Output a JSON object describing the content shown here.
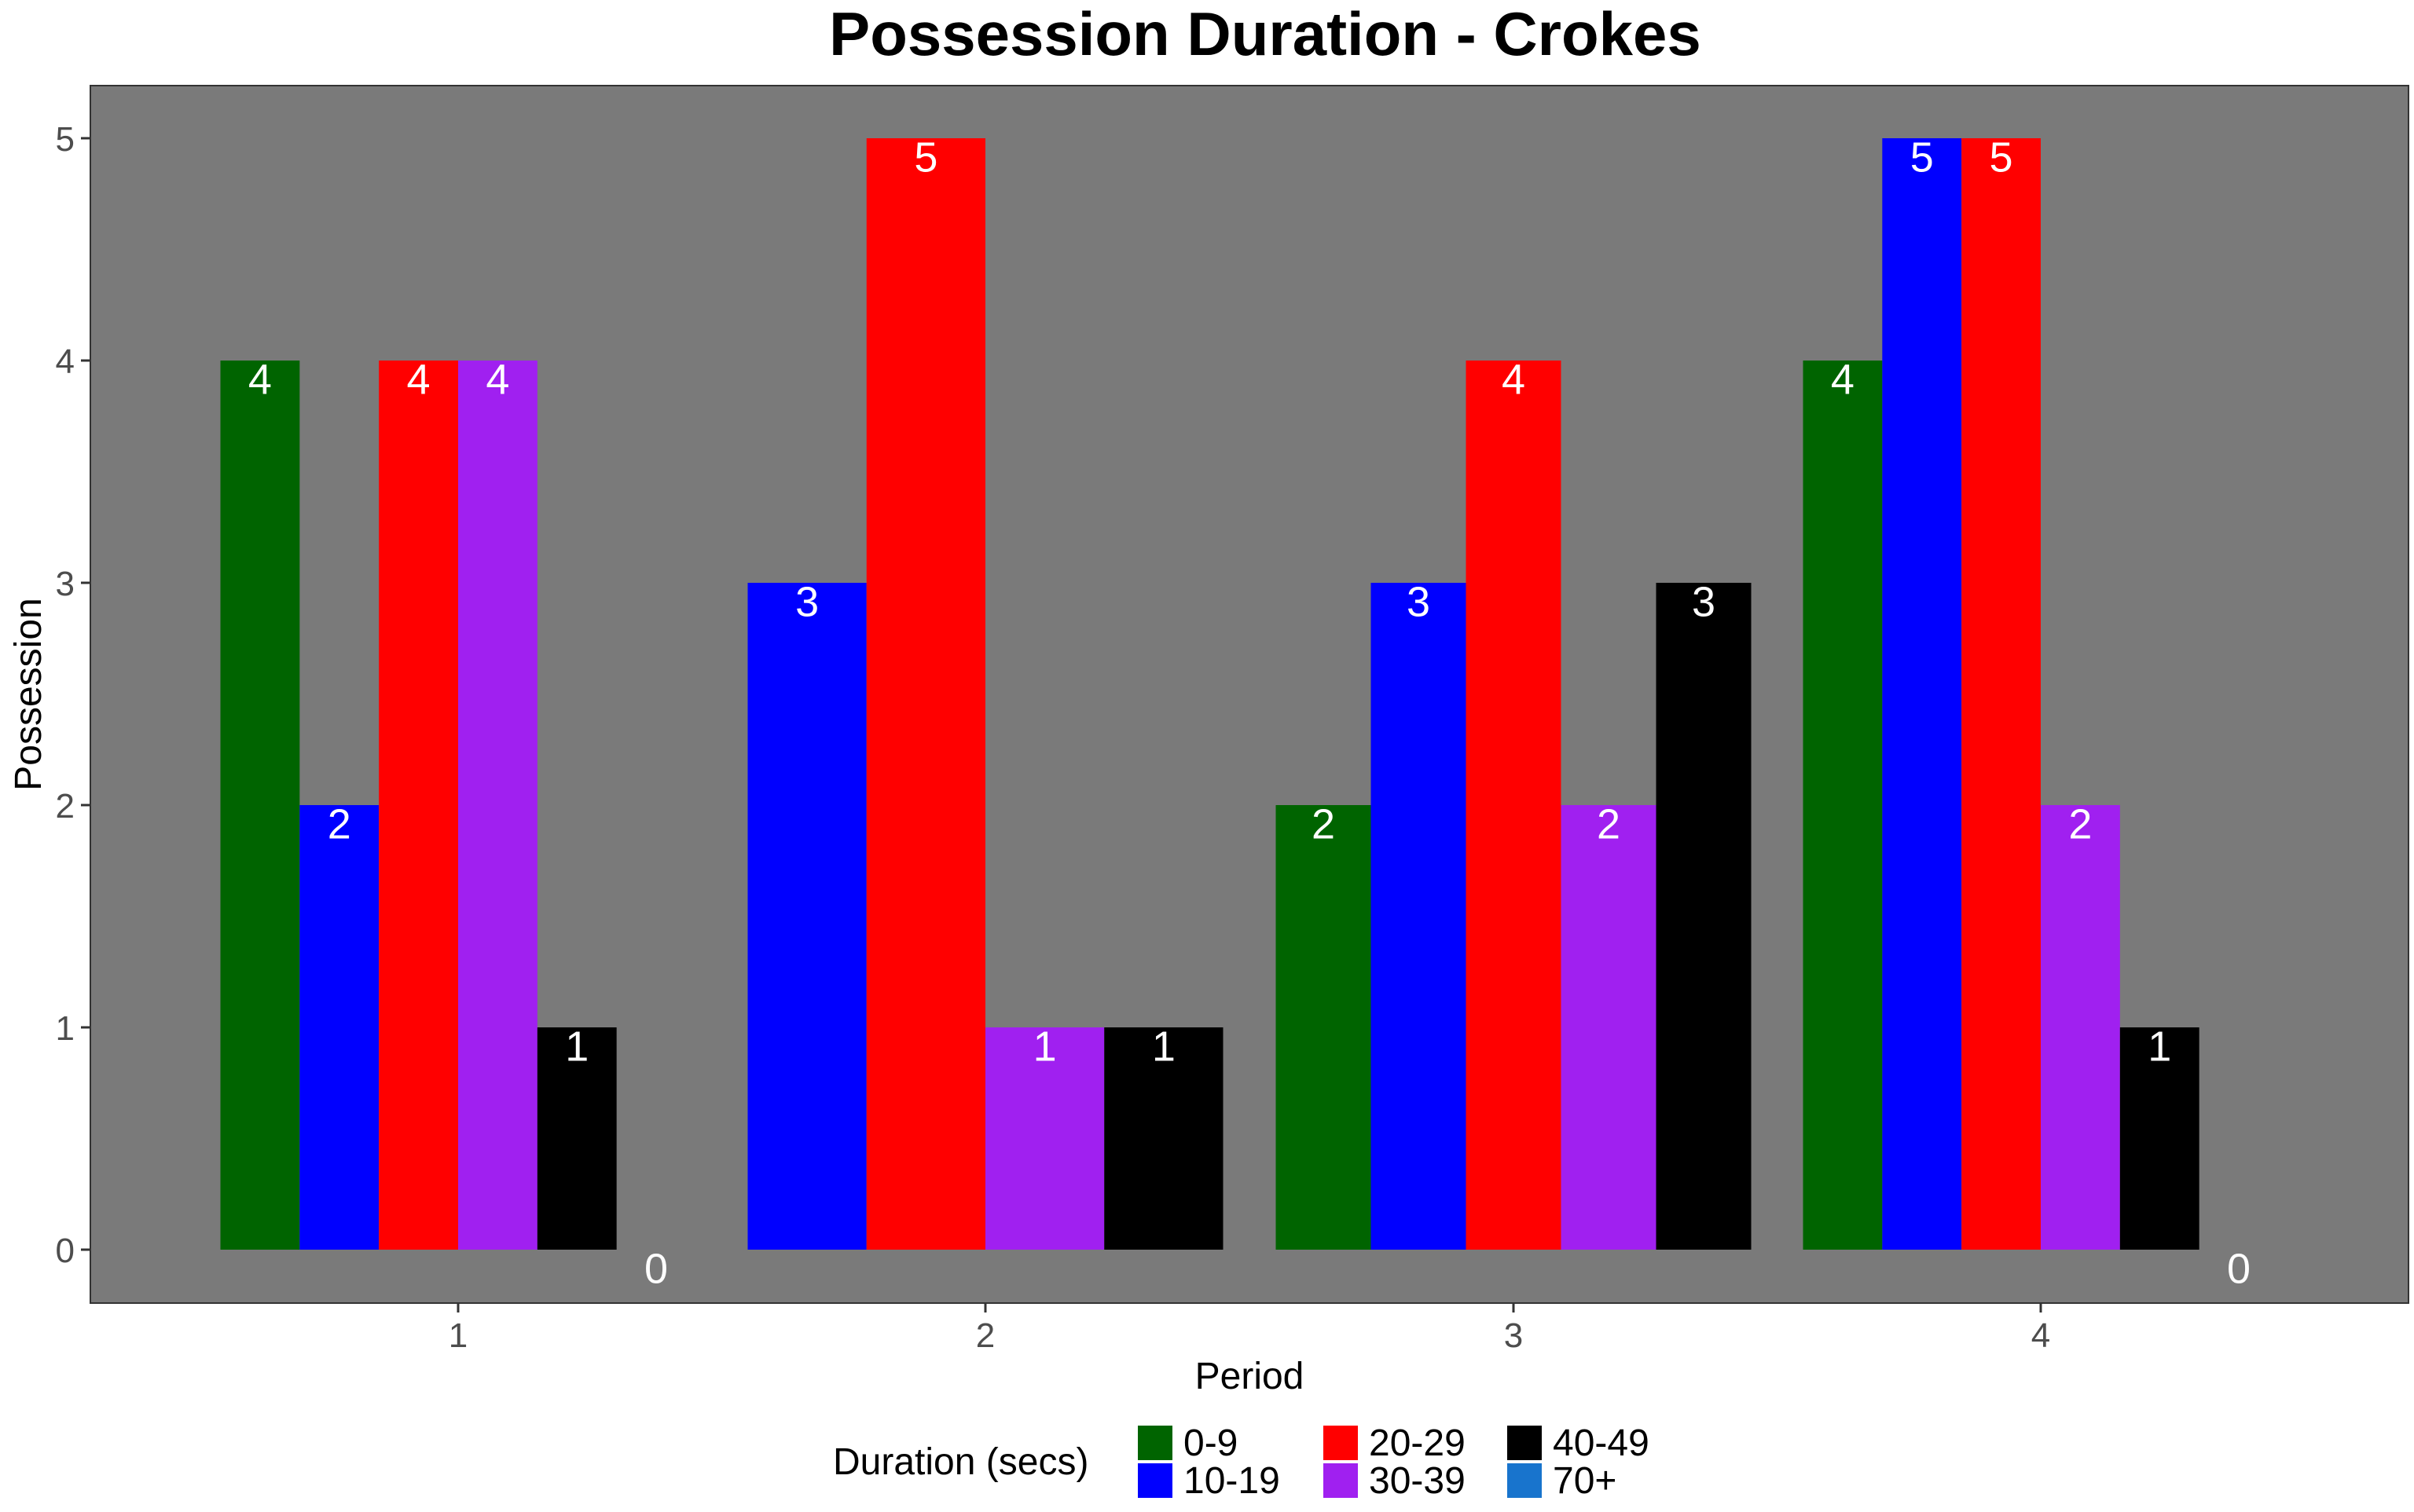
{
  "chart_data": {
    "type": "bar",
    "title": "Possession Duration - Crokes",
    "xlabel": "Period",
    "ylabel": "Possession",
    "ylim": [
      0,
      5
    ],
    "yticks": [
      0,
      1,
      2,
      3,
      4,
      5
    ],
    "grid": false,
    "legend": {
      "title": "Duration (secs)",
      "placement": "bottom",
      "columns": [
        [
          "0-9",
          "10-19"
        ],
        [
          "20-29",
          "30-39"
        ],
        [
          "40-49",
          "70+"
        ]
      ]
    },
    "periods": [
      {
        "label": "1",
        "bars": [
          {
            "series": "0-9",
            "value": 4
          },
          {
            "series": "10-19",
            "value": 2
          },
          {
            "series": "20-29",
            "value": 4
          },
          {
            "series": "30-39",
            "value": 4
          },
          {
            "series": "40-49",
            "value": 1
          },
          {
            "series": "70+",
            "value": 0
          }
        ]
      },
      {
        "label": "2",
        "bars": [
          {
            "series": "10-19",
            "value": 3
          },
          {
            "series": "20-29",
            "value": 5
          },
          {
            "series": "30-39",
            "value": 1
          },
          {
            "series": "40-49",
            "value": 1
          }
        ]
      },
      {
        "label": "3",
        "bars": [
          {
            "series": "0-9",
            "value": 2
          },
          {
            "series": "10-19",
            "value": 3
          },
          {
            "series": "20-29",
            "value": 4
          },
          {
            "series": "30-39",
            "value": 2
          },
          {
            "series": "40-49",
            "value": 3
          }
        ]
      },
      {
        "label": "4",
        "bars": [
          {
            "series": "0-9",
            "value": 4
          },
          {
            "series": "10-19",
            "value": 5
          },
          {
            "series": "20-29",
            "value": 5
          },
          {
            "series": "30-39",
            "value": 2
          },
          {
            "series": "40-49",
            "value": 1
          },
          {
            "series": "70+",
            "value": 0
          }
        ]
      }
    ],
    "series_colors": {
      "0-9": "#006400",
      "10-19": "#0000ff",
      "20-29": "#ff0000",
      "30-39": "#a020f0",
      "40-49": "#000000",
      "70+": "#1874cd"
    },
    "panel_color": "#7a7a7a",
    "label_color": "#ffffff"
  }
}
